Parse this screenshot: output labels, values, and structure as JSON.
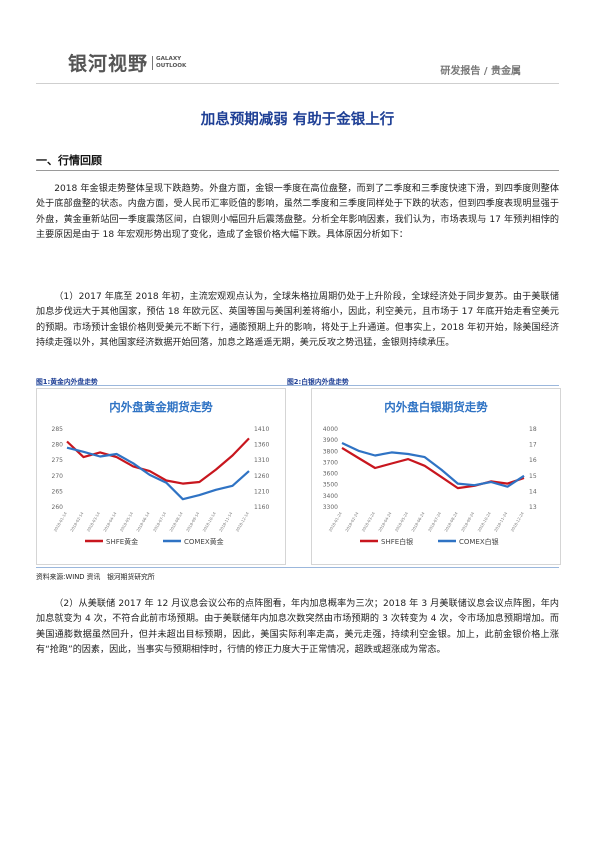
{
  "header": {
    "logo_cn": "银河视野",
    "logo_en": [
      "GALAXY",
      "OUTLOOK"
    ],
    "right": "研发报告 / 贵金属"
  },
  "title": "加息预期减弱  有助于金银上行",
  "section1": "一、行情回顾",
  "paragraphs": {
    "p1": "2018 年金银走势整体呈现下跌趋势。外盘方面，金银一季度在高位盘整，而到了二季度和三季度快速下滑，到四季度则整体处于底部盘整的状态。内盘方面，受人民币汇率贬值的影响，虽然二季度和三季度同样处于下跌的状态，但到四季度表现明显强于外盘，黄金重新站回一季度震荡区间，白银则小幅回升后震荡盘整。分析全年影响因素，我们认为，市场表现与 17 年预判相悖的主要原因是由于 18 年宏观形势出现了变化，造成了金银价格大幅下跌。具体原因分析如下：",
    "p2": "（1）2017 年底至 2018 年初，主流宏观观点认为，全球朱格拉周期仍处于上升阶段，全球经济处于同步复苏。由于美联储加息步伐远大于其他国家，预估 18 年欧元区、英国等国与美国利差将缩小，因此，利空美元，且市场于 17 年底开始走看空美元的预期。市场预计金银价格则受美元不断下行，通膨预期上升的影响，将处于上升通道。但事实上，2018 年初开始，除美国经济持续走强以外，其他国家经济数据开始回落，加息之路遥遥无期，美元反攻之势迅猛，金银则持续承压。",
    "p3": "（2）从美联储 2017 年 12 月议息会议公布的点阵图看，年内加息概率为三次；2018 年 3 月美联储议息会议点阵图，年内加息就变为 4 次，不符合此前市场预期。由于美联储年内加息次数突然由市场预期的 3 次转变为 4 次，令市场加息预期增加。而美国通膨数据虽然回升，但并未超出目标预期，因此，美国实际利率走高，美元走强，持续利空金银。加上，此前金银价格上涨有“抢跑”的因素，因此，当事实与预期相悖时，行情的修正力度大于正常情况，超跌或超涨成为常态。"
  },
  "figures": {
    "fig1_caption": "图1:黄金内外盘走势",
    "fig2_caption": "图2:白银内外盘走势",
    "source": "资料来源:WIND 资讯　银河期货研究所"
  },
  "colors": {
    "brand": "#1e3f95",
    "series_red": "#c8161e",
    "series_blue": "#2f73c4"
  },
  "chart_data": [
    {
      "type": "line",
      "title": "内外盘黄金期货走势",
      "x": [
        "2018-01-14",
        "2018-02-14",
        "2018-03-14",
        "2018-04-14",
        "2018-05-14",
        "2018-06-14",
        "2018-07-14",
        "2018-08-14",
        "2018-09-14",
        "2018-10-14",
        "2018-11-14",
        "2018-12-14"
      ],
      "x_tick_labels": [
        "2018-01-14",
        "2018-02-14",
        "2018-03-14",
        "2018-04-14",
        "2018-05-14",
        "2018-06-14",
        "2018-07-14",
        "2018-08-14",
        "2018-09-14",
        "2018-10-14",
        "2018-11-14",
        "2018-12-14"
      ],
      "yleft_ticks": [
        "285",
        "280",
        "275",
        "270",
        "265",
        "260"
      ],
      "yright_ticks": [
        "1410",
        "1360",
        "1310",
        "1260",
        "1210",
        "1160"
      ],
      "ylim_left": [
        260,
        285
      ],
      "ylim_right": [
        1160,
        1410
      ],
      "series": [
        {
          "name": "SHFE黄金",
          "axis": "left",
          "color": "#c8161e",
          "values": [
            281,
            276,
            277.5,
            276,
            273,
            271.5,
            268.5,
            267.5,
            268,
            272,
            276.5,
            282
          ]
        },
        {
          "name": "COMEX黄金",
          "axis": "right",
          "color": "#2f73c4",
          "values": [
            1350,
            1337,
            1322,
            1330,
            1300,
            1263,
            1238,
            1185,
            1198,
            1215,
            1228,
            1275
          ]
        }
      ],
      "legend_position": "bottom",
      "grid": false
    },
    {
      "type": "line",
      "title": "内外盘白银期货走势",
      "x": [
        "2018-01-24",
        "2018-02-24",
        "2018-03-24",
        "2018-04-24",
        "2018-05-24",
        "2018-06-24",
        "2018-07-24",
        "2018-08-24",
        "2018-09-24",
        "2018-10-24",
        "2018-11-24",
        "2018-12-24"
      ],
      "x_tick_labels": [
        "2018-01-24",
        "2018-02-24",
        "2018-03-24",
        "2018-04-24",
        "2018-05-24",
        "2018-06-24",
        "2018-07-24",
        "2018-08-24",
        "2018-09-24",
        "2018-10-24",
        "2018-11-24",
        "2018-12-24"
      ],
      "yleft_ticks": [
        "4000",
        "3900",
        "3800",
        "3700",
        "3600",
        "3500",
        "3400",
        "3300"
      ],
      "yright_ticks": [
        "18",
        "17",
        "16",
        "15",
        "14",
        "13"
      ],
      "ylim_left": [
        3300,
        4000
      ],
      "ylim_right": [
        13,
        18
      ],
      "series": [
        {
          "name": "SHFE白银",
          "axis": "left",
          "color": "#c8161e",
          "values": [
            3830,
            3740,
            3650,
            3690,
            3730,
            3670,
            3570,
            3470,
            3490,
            3530,
            3510,
            3560
          ]
        },
        {
          "name": "COMEX白银",
          "axis": "right",
          "color": "#2f73c4",
          "values": [
            17.1,
            16.6,
            16.3,
            16.5,
            16.4,
            16.2,
            15.4,
            14.5,
            14.4,
            14.6,
            14.3,
            15.0
          ]
        }
      ],
      "legend_position": "bottom",
      "grid": false
    }
  ]
}
